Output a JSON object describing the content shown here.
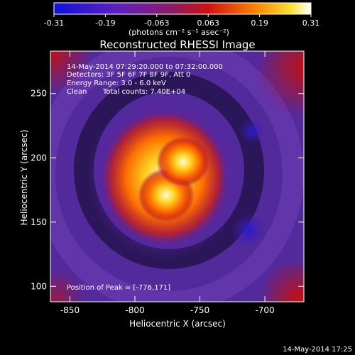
{
  "chart_data": {
    "type": "heatmap",
    "title": "Reconstructed RHESSI Image",
    "xlabel": "Heliocentric X (arcsec)",
    "ylabel": "Heliocentric Y (arcsec)",
    "xlim": [
      -865,
      -670
    ],
    "ylim": [
      88,
      283
    ],
    "x_ticks": [
      -850,
      -800,
      -750,
      -700
    ],
    "y_ticks": [
      100,
      150,
      200,
      250
    ],
    "colorbar": {
      "range": [
        -0.31,
        0.31
      ],
      "ticks": [
        "-0.31",
        "-0.19",
        "-0.063",
        "0.063",
        "0.19",
        "0.31"
      ],
      "unit_label": "(photons cm⁻² s⁻¹ asec⁻²)",
      "colormap": "blue-purple-red-orange-yellow-white"
    },
    "annotations": {
      "time_range": "14-May-2014 07:29:20.000 to 07:32:00.000",
      "detectors": "Detectors: 3F 5F 6F 7F 8F 9F, Att 0",
      "energy_range": "Energy Range: 3.0 - 6.0 keV",
      "clean": "Clean",
      "total_counts": "Total counts: 7.40E+04",
      "peak": "Position of Peak = [-776,171]"
    },
    "sources": [
      {
        "x": -776,
        "y": 171,
        "value": 0.31
      },
      {
        "x": -763,
        "y": 197,
        "value": 0.29
      }
    ],
    "timestamp": "14-May-2014 17:25"
  }
}
